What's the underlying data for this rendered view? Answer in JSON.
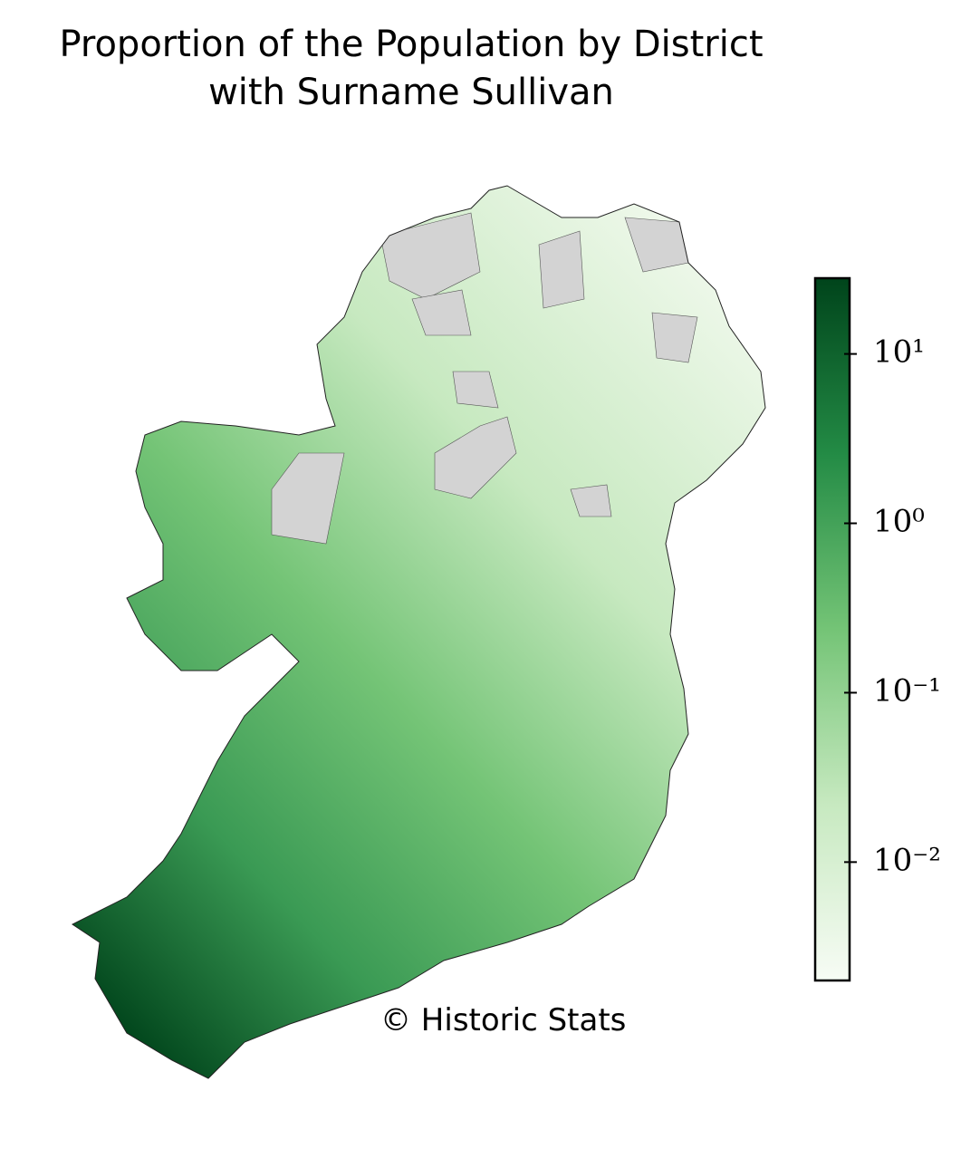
{
  "chart_data": {
    "type": "choropleth",
    "title": [
      "Proportion of the Population by District",
      "with Surname Sullivan"
    ],
    "annotation": "© Historic Stats",
    "colorbar": {
      "scale": "log",
      "lim": [
        0.002,
        28
      ],
      "ticks": [
        {
          "value": 10,
          "label": "10¹"
        },
        {
          "value": 1,
          "label": "10⁰"
        },
        {
          "value": 0.1,
          "label": "10⁻¹"
        },
        {
          "value": 0.01,
          "label": "10⁻²"
        }
      ],
      "colors": [
        "#f7fcf5",
        "#c7e9c0",
        "#74c476",
        "#238b45",
        "#00441b"
      ]
    },
    "no_data_color": "#d3d3d3"
  }
}
